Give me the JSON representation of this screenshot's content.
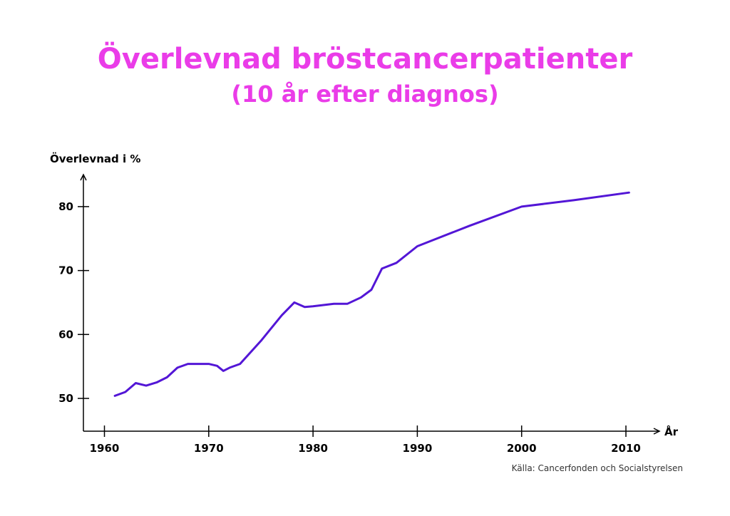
{
  "colors": {
    "title": "#ea3ce8",
    "line": "#5316d6",
    "axis": "#000000",
    "source": "#333333"
  },
  "chart_data": {
    "type": "line",
    "title": "Överlevnad bröstcancerpatienter",
    "subtitle": "(10 år efter diagnos)",
    "ylabel": "Överlevnad i %",
    "xlabel": "År",
    "source": "Källa: Cancerfonden och Socialstyrelsen",
    "xlim": [
      1958,
      2013
    ],
    "ylim": [
      45,
      85
    ],
    "x_ticks": [
      1960,
      1970,
      1980,
      1990,
      2000,
      2010
    ],
    "x_tick_labels": [
      "1960",
      "1970",
      "1980",
      "1990",
      "2000",
      "2010"
    ],
    "y_ticks": [
      50,
      60,
      70,
      80
    ],
    "y_tick_labels": [
      "50",
      "60",
      "70",
      "80"
    ],
    "grid": false,
    "legend": "none",
    "series": [
      {
        "x": [
          1961,
          1962,
          1963,
          1964,
          1965,
          1966,
          1967,
          1968,
          1969,
          1970,
          1970.8,
          1971.4,
          1972,
          1973,
          1975,
          1977,
          1978.2,
          1979.2,
          1980,
          1981,
          1982,
          1983.3,
          1984.6,
          1985.6,
          1986.6,
          1988,
          1990,
          1995,
          2000,
          2005,
          2010.3
        ],
        "y": [
          50.4,
          51.0,
          52.4,
          52.0,
          52.5,
          53.3,
          54.8,
          55.4,
          55.4,
          55.4,
          55.1,
          54.3,
          54.8,
          55.4,
          59.0,
          63.0,
          65.0,
          64.3,
          64.4,
          64.6,
          64.8,
          64.8,
          65.8,
          67.0,
          70.3,
          71.2,
          73.8,
          77.0,
          80.0,
          81.0,
          82.2
        ]
      }
    ]
  }
}
